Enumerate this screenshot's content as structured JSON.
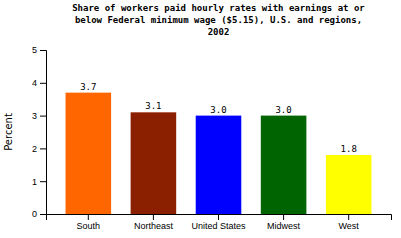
{
  "chart_data": {
    "type": "bar",
    "title": "Share of workers paid hourly rates with earnings at or\nbelow Federal minimum wage ($5.15), U.S. and regions,\n2002",
    "categories": [
      "South",
      "Northeast",
      "United States",
      "Midwest",
      "West"
    ],
    "values": [
      3.7,
      3.1,
      3.0,
      3.0,
      1.8
    ],
    "value_labels": [
      "3.7",
      "3.1",
      "3.0",
      "3.0",
      "1.8"
    ],
    "colors": [
      "#FF6600",
      "#8B2000",
      "#0000FF",
      "#006400",
      "#FFFF00"
    ],
    "ylabel": "Percent",
    "ylim": [
      0,
      5
    ],
    "yticks": [
      0,
      1,
      2,
      3,
      4,
      5
    ],
    "data_labels": true,
    "grid": false
  }
}
